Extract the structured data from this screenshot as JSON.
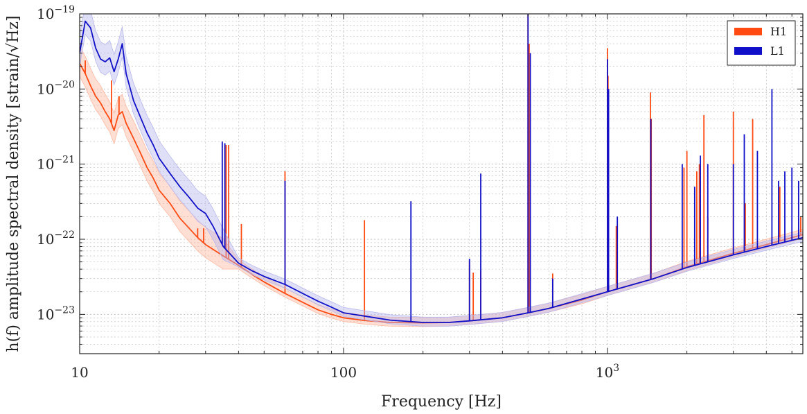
{
  "chart_data": {
    "type": "line",
    "xscale": "log",
    "yscale": "log",
    "xlim": [
      10,
      5500
    ],
    "ylim": [
      3e-24,
      1e-19
    ],
    "grid": true,
    "legend_position": "top-right",
    "xlabel": "Frequency [Hz]",
    "ylabel": "h(f) amplitude spectral density [strain/√Hz]",
    "x_ticks": [
      {
        "value": 10,
        "label": "10",
        "sup": ""
      },
      {
        "value": 100,
        "label": "100",
        "sup": ""
      },
      {
        "value": 1000,
        "label": "10",
        "sup": "3"
      }
    ],
    "y_ticks": [
      {
        "value": 1e-19,
        "label": "10",
        "sup": "−19"
      },
      {
        "value": 1e-20,
        "label": "10",
        "sup": "−20"
      },
      {
        "value": 1e-21,
        "label": "10",
        "sup": "−21"
      },
      {
        "value": 1e-22,
        "label": "10",
        "sup": "−22"
      },
      {
        "value": 1e-23,
        "label": "10",
        "sup": "−23"
      }
    ],
    "series": [
      {
        "name": "H1",
        "color": "#ff4a12",
        "band_color": "#ffb8a0",
        "points": [
          [
            10,
            2.2e-20
          ],
          [
            10.5,
            1.6e-20
          ],
          [
            11,
            1.1e-20
          ],
          [
            11.5,
            8e-21
          ],
          [
            12,
            6.5e-21
          ],
          [
            12.5,
            5e-21
          ],
          [
            13,
            4e-21
          ],
          [
            13.5,
            2.8e-21
          ],
          [
            14,
            4.5e-21
          ],
          [
            14.5,
            5e-21
          ],
          [
            15,
            3.5e-21
          ],
          [
            16,
            2.2e-21
          ],
          [
            17,
            1.4e-21
          ],
          [
            18,
            9e-22
          ],
          [
            19,
            6.5e-22
          ],
          [
            20,
            4.5e-22
          ],
          [
            22,
            3e-22
          ],
          [
            24,
            1.9e-22
          ],
          [
            26,
            1.4e-22
          ],
          [
            28,
            1.05e-22
          ],
          [
            30,
            8.5e-23
          ],
          [
            35,
            6e-23
          ],
          [
            40,
            4.5e-23
          ],
          [
            45,
            3.4e-23
          ],
          [
            50,
            2.7e-23
          ],
          [
            60,
            1.9e-23
          ],
          [
            70,
            1.45e-23
          ],
          [
            80,
            1.15e-23
          ],
          [
            90,
            1e-23
          ],
          [
            100,
            9e-24
          ],
          [
            120,
            8.3e-24
          ],
          [
            150,
            7.8e-24
          ],
          [
            200,
            7.7e-24
          ],
          [
            250,
            7.8e-24
          ],
          [
            300,
            8.2e-24
          ],
          [
            400,
            9e-24
          ],
          [
            500,
            1.05e-23
          ],
          [
            600,
            1.2e-23
          ],
          [
            800,
            1.55e-23
          ],
          [
            1000,
            2e-23
          ],
          [
            1500,
            3e-23
          ],
          [
            2000,
            4.3e-23
          ],
          [
            3000,
            6.5e-23
          ],
          [
            4000,
            8.5e-23
          ],
          [
            5500,
            1.15e-22
          ]
        ],
        "peaks": [
          [
            10.5,
            2.4e-20
          ],
          [
            13.2,
            1.3e-20
          ],
          [
            14.1,
            8e-21
          ],
          [
            28,
            1.4e-22
          ],
          [
            29.5,
            1.4e-22
          ],
          [
            35.9,
            1.8e-21
          ],
          [
            36.7,
            1.8e-21
          ],
          [
            41,
            1.6e-22
          ],
          [
            60,
            8e-22
          ],
          [
            120,
            1.8e-22
          ],
          [
            300,
            5e-23
          ],
          [
            310,
            3.6e-23
          ],
          [
            331,
            3.8e-23
          ],
          [
            500,
            1e-19
          ],
          [
            505,
            4e-20
          ],
          [
            620,
            3.5e-23
          ],
          [
            1000,
            3.5e-20
          ],
          [
            1005,
            1.5e-20
          ],
          [
            1080,
            1.5e-22
          ],
          [
            1455,
            9e-21
          ],
          [
            1465,
            4e-21
          ],
          [
            1950,
            9e-22
          ],
          [
            2000,
            1.5e-21
          ],
          [
            2180,
            8e-22
          ],
          [
            2230,
            1e-21
          ],
          [
            2320,
            4.5e-21
          ],
          [
            2400,
            2e-22
          ],
          [
            3000,
            5e-21
          ],
          [
            3330,
            3e-22
          ],
          [
            3550,
            4e-21
          ],
          [
            4500,
            5e-22
          ],
          [
            5400,
            2e-22
          ]
        ]
      },
      {
        "name": "L1",
        "color": "#1010c8",
        "band_color": "#b8b8ee",
        "points": [
          [
            10,
            3e-20
          ],
          [
            10.5,
            8e-20
          ],
          [
            11,
            6.5e-20
          ],
          [
            11.5,
            3.5e-20
          ],
          [
            12,
            2.5e-20
          ],
          [
            12.5,
            2.3e-20
          ],
          [
            13,
            2.6e-20
          ],
          [
            13.5,
            1.7e-20
          ],
          [
            14,
            2.5e-20
          ],
          [
            14.5,
            4e-20
          ],
          [
            15,
            1.6e-20
          ],
          [
            16,
            7e-21
          ],
          [
            17,
            4.2e-21
          ],
          [
            18,
            2.6e-21
          ],
          [
            19,
            1.8e-21
          ],
          [
            20,
            1.2e-21
          ],
          [
            22,
            7.5e-22
          ],
          [
            24,
            5e-22
          ],
          [
            26,
            3.6e-22
          ],
          [
            28,
            2.6e-22
          ],
          [
            30,
            2.2e-22
          ],
          [
            32,
            1.5e-22
          ],
          [
            35,
            8e-23
          ],
          [
            40,
            4.8e-23
          ],
          [
            45,
            3.8e-23
          ],
          [
            50,
            3.2e-23
          ],
          [
            60,
            2.5e-23
          ],
          [
            70,
            1.9e-23
          ],
          [
            80,
            1.5e-23
          ],
          [
            90,
            1.25e-23
          ],
          [
            100,
            1.05e-23
          ],
          [
            120,
            9.5e-24
          ],
          [
            150,
            8.4e-24
          ],
          [
            200,
            7.8e-24
          ],
          [
            250,
            7.8e-24
          ],
          [
            300,
            8.2e-24
          ],
          [
            400,
            9e-24
          ],
          [
            500,
            1.05e-23
          ],
          [
            600,
            1.2e-23
          ],
          [
            800,
            1.6e-23
          ],
          [
            1000,
            2e-23
          ],
          [
            1500,
            3e-23
          ],
          [
            2000,
            4.2e-23
          ],
          [
            3000,
            6.2e-23
          ],
          [
            4000,
            8e-23
          ],
          [
            5500,
            1.05e-22
          ]
        ],
        "peaks": [
          [
            34.7,
            2e-21
          ],
          [
            35.5,
            1.9e-21
          ],
          [
            60,
            6e-22
          ],
          [
            180,
            3.2e-22
          ],
          [
            300,
            5.5e-23
          ],
          [
            331,
            7.5e-22
          ],
          [
            500,
            1e-19
          ],
          [
            510,
            3e-20
          ],
          [
            620,
            3e-23
          ],
          [
            1000,
            2.5e-20
          ],
          [
            1010,
            1e-20
          ],
          [
            1090,
            2e-22
          ],
          [
            1460,
            4e-21
          ],
          [
            1920,
            1e-21
          ],
          [
            2140,
            5e-22
          ],
          [
            2250,
            1.3e-21
          ],
          [
            2400,
            1e-21
          ],
          [
            3000,
            1e-21
          ],
          [
            3300,
            2.5e-21
          ],
          [
            3700,
            1.5e-21
          ],
          [
            4200,
            1e-20
          ],
          [
            4450,
            6e-22
          ],
          [
            4700,
            8e-22
          ],
          [
            5000,
            9e-22
          ],
          [
            5300,
            6e-22
          ]
        ]
      }
    ]
  }
}
